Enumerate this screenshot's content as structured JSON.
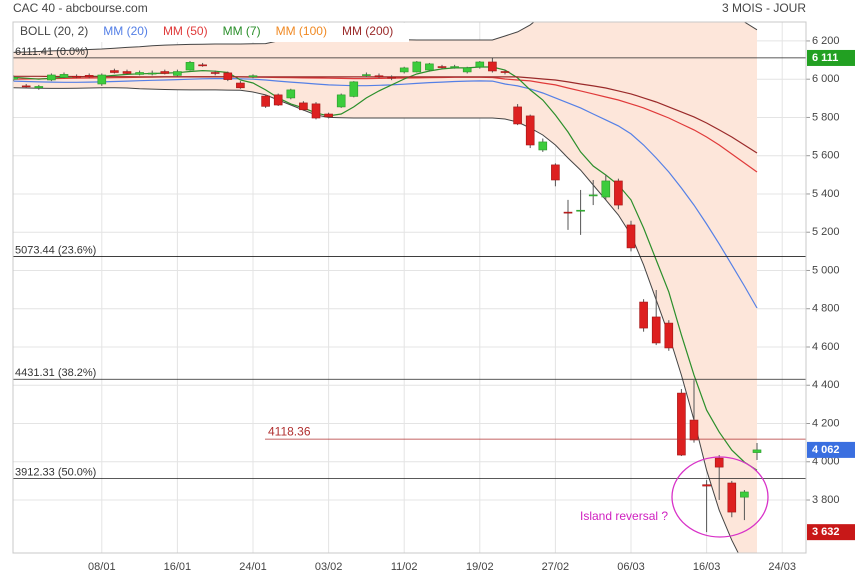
{
  "chart_data": {
    "type": "candlestick",
    "title": "CAC 40 - abcbourse.com",
    "subtitle": "3 MOIS - JOUR",
    "categories": [
      null,
      null,
      null,
      null,
      null,
      null,
      null,
      "08/01",
      null,
      null,
      null,
      null,
      null,
      "16/01",
      null,
      null,
      null,
      null,
      null,
      "24/01",
      null,
      null,
      null,
      null,
      null,
      "03/02",
      null,
      null,
      null,
      null,
      null,
      "11/02",
      null,
      null,
      null,
      null,
      null,
      "19/02",
      null,
      null,
      null,
      null,
      null,
      "27/02",
      null,
      null,
      null,
      null,
      null,
      "06/03",
      null,
      null,
      null,
      null,
      null,
      "16/03",
      null,
      null,
      null,
      null,
      null,
      "24/03"
    ],
    "open": [
      6000,
      5965,
      5955,
      5996,
      6010,
      6015,
      6020,
      5975,
      6045,
      6040,
      6025,
      6030,
      6040,
      6020,
      6048,
      6075,
      6035,
      6033,
      5980,
      6012,
      5912,
      5918,
      5902,
      5876,
      5871,
      5818,
      5855,
      5910,
      6020,
      6018,
      6010,
      6038,
      6038,
      6048,
      6066,
      6062,
      6038,
      6064,
      6090,
      6040,
      5855,
      5808,
      5630,
      5552,
      5305,
      5310,
      5390,
      5384,
      5468,
      5238,
      4835,
      4757,
      4725,
      4359,
      4218,
      3880,
      4019,
      3889,
      3815,
      4048,
      null,
      null
    ],
    "high": [
      6020,
      5975,
      5970,
      6030,
      6035,
      6025,
      6030,
      6030,
      6055,
      6050,
      6045,
      6045,
      6050,
      6050,
      6095,
      6085,
      6045,
      6040,
      5990,
      6025,
      5920,
      5925,
      5950,
      5885,
      5880,
      5825,
      5925,
      5990,
      6035,
      6030,
      6020,
      6065,
      6095,
      6085,
      6075,
      6075,
      6065,
      6095,
      6111.41,
      6050,
      5870,
      5815,
      5690,
      5560,
      5369,
      5421,
      5473,
      5500,
      5480,
      5260,
      4850,
      4898,
      4740,
      4380,
      4427,
      3904,
      4035,
      3900,
      3852,
      4098,
      null,
      null
    ],
    "low": [
      5990,
      5955,
      5945,
      5990,
      6005,
      6005,
      6005,
      5965,
      6030,
      6025,
      6020,
      6020,
      6025,
      6015,
      6045,
      6065,
      6020,
      5990,
      5950,
      6005,
      5850,
      5860,
      5895,
      5835,
      5790,
      5795,
      5850,
      5905,
      6010,
      6005,
      5995,
      6030,
      6035,
      6040,
      6055,
      6055,
      6030,
      6055,
      6035,
      6025,
      5760,
      5640,
      5620,
      5440,
      5212,
      5186,
      5342,
      5370,
      5320,
      5100,
      4680,
      4610,
      4580,
      4030,
      4100,
      3632,
      3800,
      3710,
      3695,
      4009,
      null,
      null
    ],
    "close": [
      6010,
      5960,
      5962,
      6022,
      6025,
      6010,
      6012,
      6022,
      6035,
      6030,
      6035,
      6032,
      6030,
      6040,
      6088,
      6072,
      6033,
      5998,
      5955,
      6018,
      5858,
      5865,
      5944,
      5840,
      5797,
      5803,
      5918,
      5986,
      6024,
      6015,
      6005,
      6059,
      6090,
      6080,
      6062,
      6066,
      6059,
      6090,
      6043,
      6036,
      5766,
      5656,
      5672,
      5473,
      5300,
      5315,
      5395,
      5468,
      5342,
      5118,
      4699,
      4621,
      4595,
      4035,
      4114,
      3873,
      3972,
      3737,
      3842,
      4062,
      null,
      null
    ],
    "up_color": "#3ccc3c",
    "down_color": "#dd2020",
    "bands": {
      "name": "BOLL (20, 2)",
      "color": "#444444",
      "fill": "#fde6da",
      "upper": [
        6140,
        6142,
        6145,
        6148,
        6150,
        6152,
        6155,
        6158,
        6162,
        6166,
        6170,
        6175,
        6178,
        6180,
        6182,
        6183,
        6184,
        6184,
        6184,
        6185,
        6186,
        6200,
        6205,
        6208,
        6210,
        6210,
        6210,
        6210,
        6209,
        6208,
        6207,
        6206,
        6205,
        6205,
        6205,
        6205,
        6205,
        6205,
        6205,
        6226,
        6247,
        6284,
        6336,
        6388,
        6430,
        6460,
        6480,
        6490,
        6495,
        6495,
        6490,
        6480,
        6465,
        6445,
        6420,
        6390,
        6360,
        6330,
        6299,
        6258,
        null,
        null
      ],
      "lower": [
        5955,
        5954,
        5953,
        5952,
        5952,
        5953,
        5954,
        5955,
        5955,
        5954,
        5950,
        5948,
        5946,
        5945,
        5944,
        5944,
        5944,
        5943,
        5942,
        5933,
        5918,
        5891,
        5865,
        5839,
        5813,
        5800,
        5798,
        5797,
        5797,
        5797,
        5797,
        5797,
        5797,
        5797,
        5797,
        5797,
        5797,
        5797,
        5797,
        5792,
        5776,
        5745,
        5708,
        5656,
        5588,
        5525,
        5447,
        5369,
        5290,
        5186,
        5029,
        4846,
        4663,
        4453,
        4218,
        3956,
        3747,
        3590,
        3459,
        3355,
        null,
        null
      ]
    },
    "series": [
      {
        "name": "MM (20)",
        "color": "#5580e6",
        "values": [
          5990,
          5988,
          5986,
          5985,
          5984,
          5984,
          5985,
          5986,
          5988,
          5990,
          5992,
          5994,
          5996,
          5998,
          6000,
          6002,
          6003,
          6003,
          6002,
          6000,
          5996,
          5990,
          5985,
          5980,
          5975,
          5970,
          5968,
          5966,
          5966,
          5968,
          5970,
          5974,
          5978,
          5982,
          5985,
          5988,
          5990,
          5991,
          5990,
          5975,
          5965,
          5949,
          5928,
          5902,
          5876,
          5850,
          5818,
          5787,
          5756,
          5714,
          5656,
          5588,
          5515,
          5431,
          5342,
          5243,
          5139,
          5029,
          4919,
          4804,
          null,
          null
        ]
      },
      {
        "name": "MM (50)",
        "color": "#e03a3a",
        "values": [
          6000,
          6001,
          6002,
          6003,
          6004,
          6005,
          6006,
          6007,
          6008,
          6009,
          6010,
          6011,
          6012,
          6012,
          6013,
          6013,
          6013,
          6012,
          6012,
          6011,
          6010,
          6009,
          6008,
          6007,
          6006,
          6005,
          6004,
          6003,
          6003,
          6004,
          6005,
          6006,
          6007,
          6008,
          6009,
          6010,
          6010,
          6010,
          6009,
          6001,
          5996,
          5991,
          5980,
          5970,
          5954,
          5939,
          5923,
          5907,
          5891,
          5871,
          5850,
          5824,
          5797,
          5766,
          5735,
          5698,
          5656,
          5609,
          5562,
          5515,
          null,
          null
        ]
      },
      {
        "name": "MM (7)",
        "color": "#2b8f2b",
        "values": [
          6010,
          6005,
          6000,
          6005,
          6010,
          6012,
          6015,
          6015,
          6020,
          6025,
          6028,
          6030,
          6032,
          6034,
          6040,
          6045,
          6042,
          6035,
          5996,
          5980,
          5944,
          5902,
          5871,
          5850,
          5824,
          5808,
          5818,
          5855,
          5902,
          5939,
          5970,
          6001,
          6027,
          6043,
          6054,
          6059,
          6059,
          6064,
          6064,
          6048,
          6007,
          5944,
          5891,
          5813,
          5724,
          5620,
          5546,
          5499,
          5447,
          5369,
          5222,
          5055,
          4888,
          4663,
          4453,
          4270,
          4155,
          4061,
          3998,
          3956,
          null,
          null
        ]
      },
      {
        "name": "MM (100)",
        "color": "#f08a24",
        "values": [
          null,
          null,
          null,
          null,
          null,
          null,
          null,
          null,
          null,
          null,
          null,
          null,
          null,
          null,
          null,
          null,
          null,
          null,
          null,
          null,
          null,
          null,
          null,
          null,
          null,
          null,
          null,
          null,
          null,
          null,
          null,
          null,
          null,
          null,
          null,
          null,
          null,
          null,
          null,
          null,
          null,
          null,
          null,
          null,
          null,
          null,
          null,
          null,
          null,
          null,
          null,
          null,
          null,
          null,
          null,
          null,
          null,
          null,
          null,
          null,
          null,
          null
        ]
      },
      {
        "name": "MM (200)",
        "color": "#9a2a2a",
        "values": [
          6015,
          6015,
          6015,
          6014,
          6014,
          6014,
          6013,
          6013,
          6013,
          6013,
          6012,
          6012,
          6012,
          6012,
          6012,
          6012,
          6012,
          6012,
          6012,
          6012,
          6012,
          6012,
          6012,
          6012,
          6012,
          6012,
          6012,
          6012,
          6012,
          6012,
          6012,
          6012,
          6012,
          6012,
          6012,
          6012,
          6012,
          6012,
          6012,
          6012,
          6012,
          6007,
          6001,
          5996,
          5986,
          5975,
          5965,
          5954,
          5939,
          5923,
          5902,
          5881,
          5855,
          5829,
          5803,
          5771,
          5735,
          5698,
          5656,
          5614,
          null,
          null
        ]
      }
    ],
    "ylim": [
      3523,
      6299
    ],
    "yticks": [
      {
        "value": 3800,
        "label": "3 800"
      },
      {
        "value": 4000,
        "label": "4 000"
      },
      {
        "value": 4200,
        "label": "4 200"
      },
      {
        "value": 4400,
        "label": "4 400"
      },
      {
        "value": 4600,
        "label": "4 600"
      },
      {
        "value": 4800,
        "label": "4 800"
      },
      {
        "value": 5000,
        "label": "5 000"
      },
      {
        "value": 5200,
        "label": "5 200"
      },
      {
        "value": 5400,
        "label": "5 400"
      },
      {
        "value": 5600,
        "label": "5 600"
      },
      {
        "value": 5800,
        "label": "5 800"
      },
      {
        "value": 6000,
        "label": "6 000"
      },
      {
        "value": 6200,
        "label": "6 200"
      }
    ],
    "grid": true,
    "levels": [
      {
        "value": 6111.41,
        "label": "6111.41  (0.0%)"
      },
      {
        "value": 5073.44,
        "label": "5073.44  (23.6%)"
      },
      {
        "value": 4431.31,
        "label": "4431.31  (38.2%)"
      },
      {
        "value": 3912.33,
        "label": "3912.33  (50.0%)"
      }
    ],
    "price_line": {
      "value": 4118.36,
      "color": "#b03030"
    },
    "markers": [
      {
        "value": 6111,
        "label": "6 111",
        "color": "#22a022"
      },
      {
        "value": 4062,
        "label": "4 062",
        "color": "#3a6fe0"
      },
      {
        "value": 3632,
        "label": "3 632",
        "color": "#c81818"
      }
    ],
    "annotation": "Island reversal ?"
  }
}
